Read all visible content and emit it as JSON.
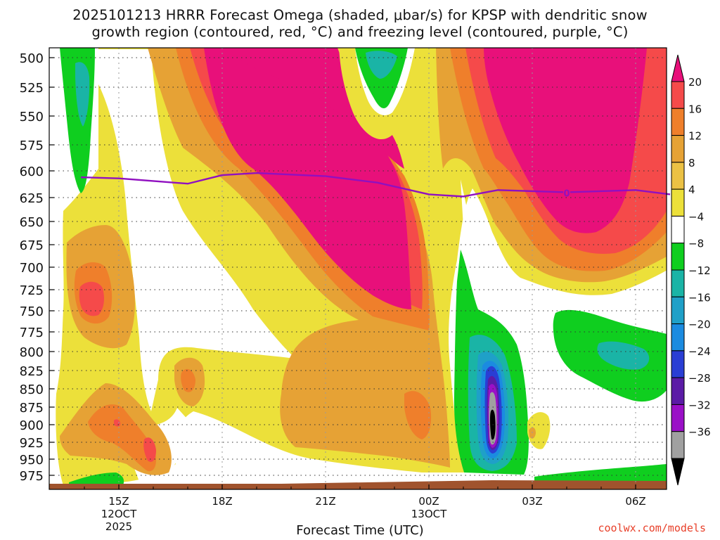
{
  "chart_data": {
    "type": "heatmap",
    "title_line1": "2025101213 HRRR Forecast Omega (shaded, μbar/s) for KPSP with dendritic snow",
    "title_line2": "growth region (contoured, red, °C) and freezing level (contoured, purple, °C)",
    "xlabel": "Forecast Time (UTC)",
    "ylabel": "",
    "y_axis": {
      "unit": "hPa",
      "reversed": true,
      "ticks": [
        "500",
        "525",
        "550",
        "575",
        "600",
        "625",
        "650",
        "675",
        "700",
        "725",
        "750",
        "775",
        "800",
        "825",
        "850",
        "875",
        "900",
        "925",
        "950",
        "975"
      ],
      "ylim": [
        500,
        990
      ]
    },
    "x_axis": {
      "ticks": [
        {
          "label": "15Z",
          "sublabel": "12OCT",
          "sublabel2": "2025"
        },
        {
          "label": "18Z",
          "sublabel": "",
          "sublabel2": ""
        },
        {
          "label": "21Z",
          "sublabel": "",
          "sublabel2": ""
        },
        {
          "label": "00Z",
          "sublabel": "13OCT",
          "sublabel2": ""
        },
        {
          "label": "03Z",
          "sublabel": "",
          "sublabel2": ""
        },
        {
          "label": "06Z",
          "sublabel": "",
          "sublabel2": ""
        }
      ]
    },
    "grid": true,
    "colorbar": {
      "levels": [
        "20",
        "16",
        "12",
        "8",
        "4",
        "−4",
        "−8",
        "−12",
        "−16",
        "−20",
        "−24",
        "−28",
        "−32",
        "−36"
      ],
      "colors": [
        "#e8107a",
        "#f54a4a",
        "#ef7f2b",
        "#e6a235",
        "#ebc144",
        "#ece03a",
        "#ffffff",
        "#0fce1f",
        "#1ab4a6",
        "#1fa0c8",
        "#1b8be0",
        "#2a3ed4",
        "#5b1ba6",
        "#9a10c7",
        "#a0a0a0",
        "#000000"
      ]
    },
    "freezing_level": {
      "label": "0",
      "color": "#9010c0",
      "points": [
        {
          "x": "13.9Z",
          "p": 606
        },
        {
          "x": "15Z",
          "p": 607
        },
        {
          "x": "17Z",
          "p": 612
        },
        {
          "x": "18Z",
          "p": 604
        },
        {
          "x": "19Z",
          "p": 602
        },
        {
          "x": "21Z",
          "p": 605
        },
        {
          "x": "22.5Z",
          "p": 611
        },
        {
          "x": "00Z",
          "p": 622
        },
        {
          "x": "01Z",
          "p": 624
        },
        {
          "x": "02Z",
          "p": 618
        },
        {
          "x": "03Z",
          "p": 619
        },
        {
          "x": "04Z",
          "p": 620
        },
        {
          "x": "06Z",
          "p": 618
        },
        {
          "x": "07Z",
          "p": 622
        }
      ]
    },
    "colors": {
      "ground": "#a0532d",
      "grid": "#999999"
    }
  },
  "credit": "coolwx.com/models"
}
